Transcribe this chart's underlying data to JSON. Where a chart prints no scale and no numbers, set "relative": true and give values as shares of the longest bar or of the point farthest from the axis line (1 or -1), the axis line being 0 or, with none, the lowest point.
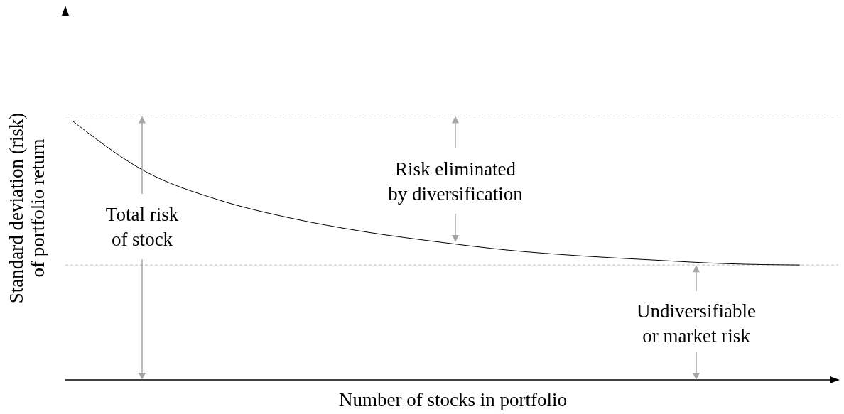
{
  "chart_data": {
    "type": "line",
    "relative": true,
    "xlabel": "Number of stocks in portfolio",
    "ylabel": "Standard deviation (risk) of portfolio return",
    "categories": [
      null,
      null,
      null,
      null,
      null,
      null,
      null,
      null,
      null,
      null,
      null
    ],
    "series": [
      {
        "color": "#000000",
        "values": [
          1,
          0.805,
          0.696,
          0.625,
          0.573,
          0.534,
          0.501,
          0.479,
          0.463,
          0.449,
          0.444
        ]
      }
    ],
    "ref_lines": [
      {
        "axis": "y",
        "value": 1.019,
        "color": "#bfbfbf",
        "line_style": "dashed"
      },
      {
        "axis": "y",
        "value": 0.444,
        "color": "#bfbfbf",
        "line_style": "dashed"
      }
    ],
    "annotations": [
      "Total risk of stock",
      "Risk eliminated by diversification",
      "Undiversifiable or market risk"
    ]
  }
}
